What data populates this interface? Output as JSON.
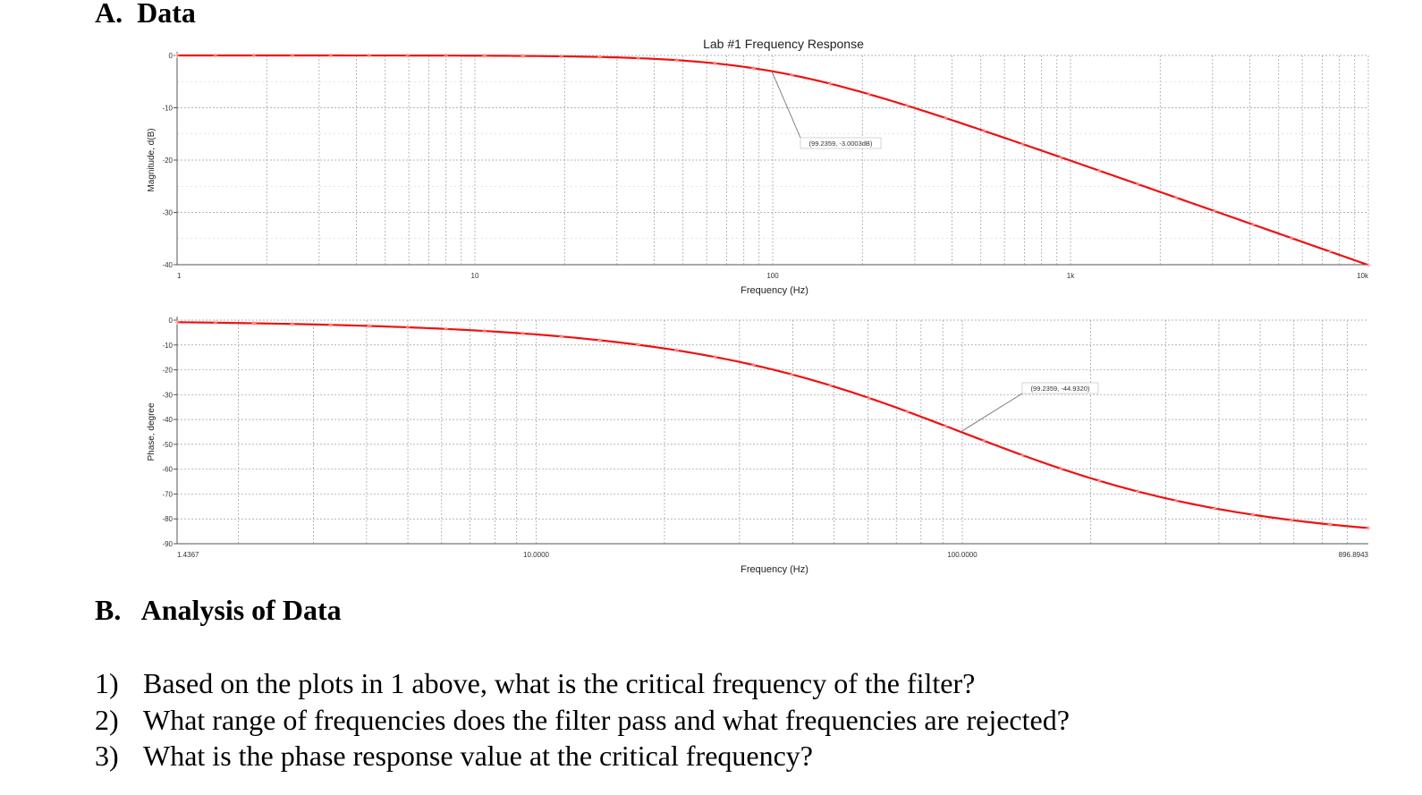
{
  "section_a": {
    "heading": "A.  Data"
  },
  "section_b": {
    "heading": "B.   Analysis of Data"
  },
  "questions": [
    {
      "num": "1)",
      "text": "Based on the plots in 1 above, what is the critical frequency of the filter?"
    },
    {
      "num": "2)",
      "text": "What range of frequencies does the filter pass and what frequencies are rejected?"
    },
    {
      "num": "3)",
      "text": "What is the phase response value at the critical frequency?"
    }
  ],
  "colors": {
    "trace": "#ee1111",
    "grid": "#9a9a9a",
    "axis": "#555555",
    "text": "#333333",
    "callout": "#777777"
  },
  "chart_data": [
    {
      "type": "line",
      "title": "Lab #1 Frequency Response",
      "xlabel": "Frequency (Hz)",
      "ylabel": "Magnitude, d(B)",
      "x_scale": "log",
      "xlim": [
        1,
        10000
      ],
      "ylim": [
        -40,
        0
      ],
      "x_ticks": [
        1,
        10,
        100,
        1000,
        10000
      ],
      "x_tick_labels": [
        "1",
        "10",
        "100",
        "1k",
        "10k"
      ],
      "y_ticks": [
        0,
        -10,
        -20,
        -30,
        -40
      ],
      "y_tick_labels": [
        "0",
        "-10",
        "-20",
        "-30",
        "-40"
      ],
      "grid": true,
      "series": [
        {
          "fc": 99.2359,
          "function": "magnitude_db"
        }
      ],
      "annotation": {
        "x": 99.2359,
        "y": -3.0003,
        "text": "(99.2359, -3.0003dB)"
      }
    },
    {
      "type": "line",
      "title": "",
      "xlabel": "Frequency (Hz)",
      "ylabel": "Phase, degree",
      "x_scale": "log",
      "xlim": [
        1.4367,
        896.8943
      ],
      "ylim": [
        -90,
        0
      ],
      "x_ticks": [
        1.4367,
        10,
        100,
        896.8943
      ],
      "x_tick_labels": [
        "1.4367",
        "10.0000",
        "100.0000",
        "896.8943"
      ],
      "y_ticks": [
        0,
        -10,
        -20,
        -30,
        -40,
        -50,
        -60,
        -70,
        -80,
        -90
      ],
      "y_tick_labels": [
        "0",
        "-10",
        "-20",
        "-30",
        "-40",
        "-50",
        "-60",
        "-70",
        "-80",
        "-90"
      ],
      "grid": true,
      "series": [
        {
          "fc": 99.2359,
          "function": "phase_deg"
        }
      ],
      "annotation": {
        "x": 99.2359,
        "y": -44.932,
        "text": "(99.2359, -44.9320)"
      }
    }
  ]
}
